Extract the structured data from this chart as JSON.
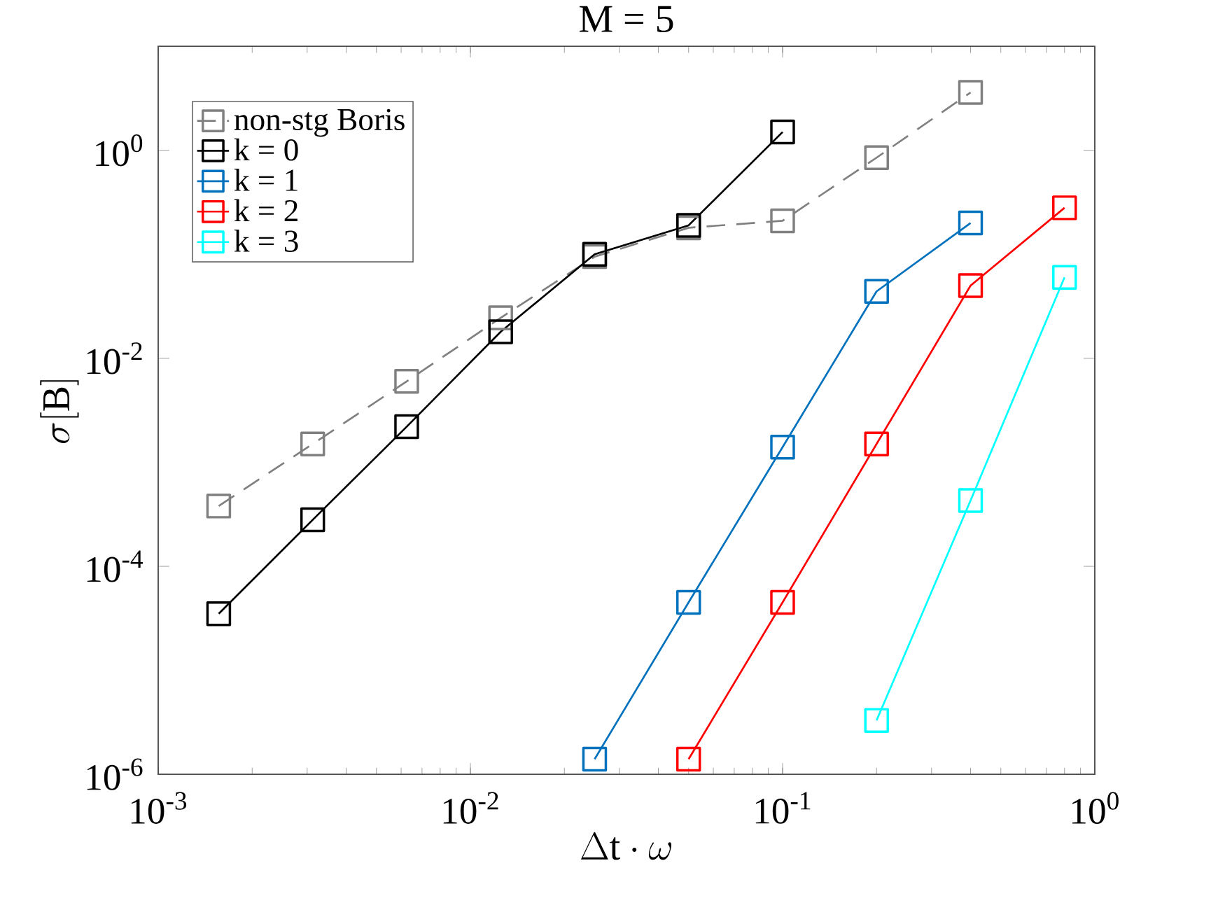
{
  "chart_data": {
    "type": "line",
    "title": "M = 5",
    "xlabel": "\\Delta\\mathrm{t}\\cdot\\omega",
    "ylabel": "\\sigma[\\mathrm{B}]",
    "log": "xy",
    "grid": false,
    "legend": "top left",
    "marker": "square",
    "xlim": [
      0.001,
      1
    ],
    "ylim": [
      1e-06,
      10
    ],
    "xticks": [
      {
        "value": 0.001,
        "label": "10$^{-3}$"
      },
      {
        "value": 0.01,
        "label": "10$^{-2}$"
      },
      {
        "value": 0.1,
        "label": "10$^{-1}$"
      },
      {
        "value": 1,
        "label": "10$^{0}$"
      }
    ],
    "yticks": [
      {
        "value": 1e-06,
        "label": "10$^{-6}$"
      },
      {
        "value": 0.0001,
        "label": "10$^{-4}$"
      },
      {
        "value": 0.01,
        "label": "10$^{-2}$"
      },
      {
        "value": 1,
        "label": "10$^{0}$"
      }
    ],
    "series": [
      {
        "name": "non-stg Boris",
        "color": "#808080",
        "line_style": "dashed",
        "x": [
          0.0015625,
          0.003125,
          0.00625,
          0.0125,
          0.025,
          0.05,
          0.1,
          0.2,
          0.4
        ],
        "values": [
          0.00038,
          0.0015,
          0.006,
          0.0245,
          0.095,
          0.18,
          0.21,
          0.85,
          3.6
        ]
      },
      {
        "name": "k = 0",
        "color": "#000000",
        "line_style": "solid",
        "x": [
          0.0015625,
          0.003125,
          0.00625,
          0.0125,
          0.025,
          0.05,
          0.1
        ],
        "values": [
          3.5e-05,
          0.00028,
          0.0022,
          0.018,
          0.1,
          0.19,
          1.5
        ]
      },
      {
        "name": "k = 1",
        "color": "#0072bd",
        "line_style": "solid",
        "x": [
          0.025,
          0.05,
          0.1,
          0.2,
          0.4
        ],
        "values": [
          1.4e-06,
          4.5e-05,
          0.0014,
          0.044,
          0.2
        ]
      },
      {
        "name": "k = 2",
        "color": "#ff0000",
        "line_style": "solid",
        "x": [
          0.05,
          0.1,
          0.2,
          0.4,
          0.8
        ],
        "values": [
          1.4e-06,
          4.5e-05,
          0.0015,
          0.05,
          0.28
        ]
      },
      {
        "name": "k = 3",
        "color": "#00ffff",
        "line_style": "solid",
        "x": [
          0.2,
          0.4,
          0.8
        ],
        "values": [
          3.3e-06,
          0.00043,
          0.06
        ]
      }
    ]
  }
}
